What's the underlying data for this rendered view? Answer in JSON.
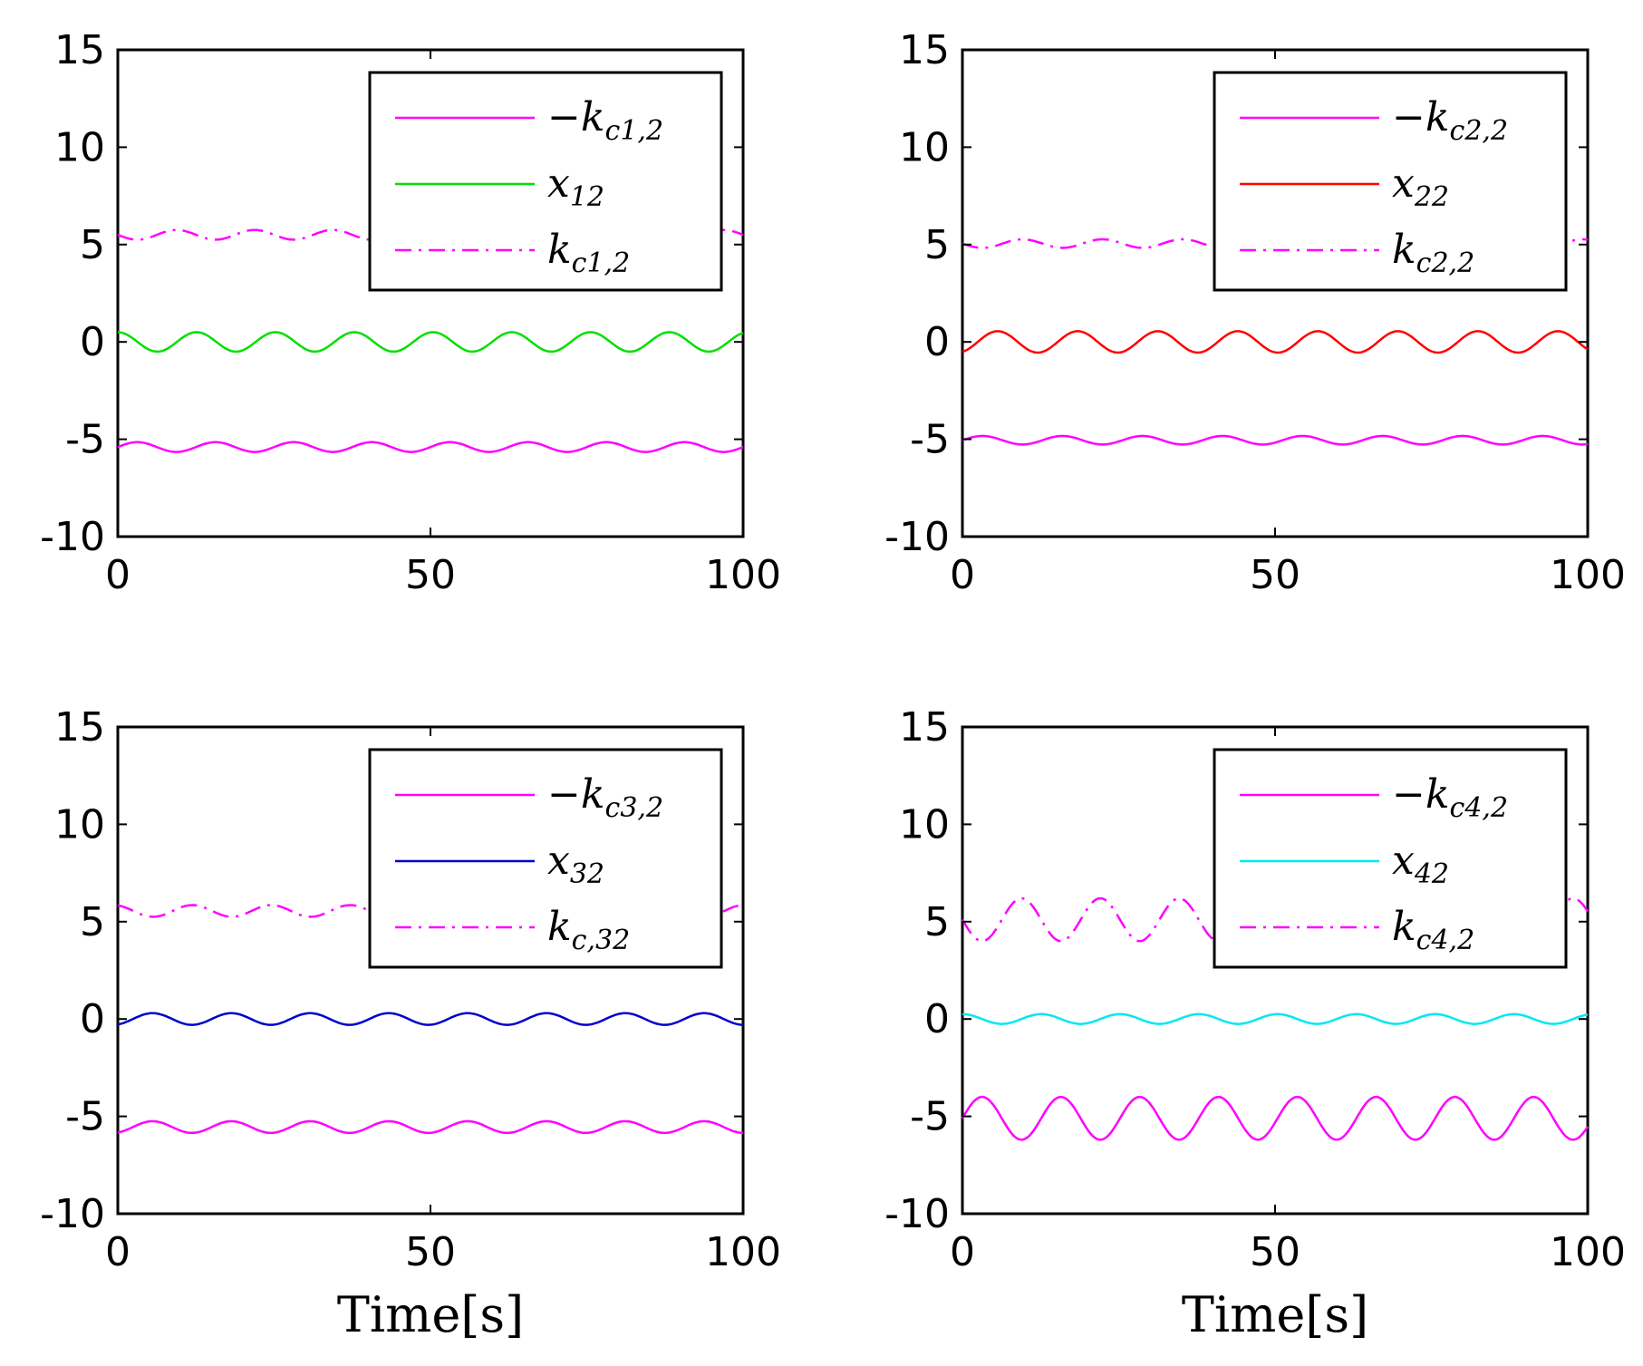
{
  "chart_data": [
    {
      "type": "line",
      "title": "",
      "xlabel": "",
      "ylabel": "",
      "xlim": [
        0,
        100
      ],
      "ylim": [
        -10,
        15
      ],
      "xticks": [
        "0",
        "50",
        "100"
      ],
      "yticks": [
        "15",
        "10",
        "5",
        "0",
        "-5",
        "-10"
      ],
      "legend_location": "top-right",
      "series": [
        {
          "name": "−k",
          "sub": "c1,2",
          "color": "#ff00ff",
          "style": "solid",
          "mean": -5.4,
          "amplitude": 0.25,
          "period": 12.5,
          "phase": 0.0
        },
        {
          "name": "x",
          "sub": "12",
          "color": "#00e000",
          "style": "solid",
          "mean": 0.0,
          "amplitude": 0.5,
          "period": 12.6,
          "phase": 1.57
        },
        {
          "name": "k",
          "sub": "c1,2",
          "color": "#ff00ff",
          "style": "dashdot",
          "mean": 5.5,
          "amplitude": 0.25,
          "period": 12.5,
          "phase": 3.14
        }
      ]
    },
    {
      "type": "line",
      "title": "",
      "xlabel": "",
      "ylabel": "",
      "xlim": [
        0,
        100
      ],
      "ylim": [
        -10,
        15
      ],
      "xticks": [
        "0",
        "50",
        "100"
      ],
      "yticks": [
        "15",
        "10",
        "5",
        "0",
        "-5",
        "-10"
      ],
      "legend_location": "top-right",
      "series": [
        {
          "name": "−k",
          "sub": "c2,2",
          "color": "#ff00ff",
          "style": "solid",
          "mean": -5.05,
          "amplitude": 0.22,
          "period": 12.8,
          "phase": 0.0
        },
        {
          "name": "x",
          "sub": "22",
          "color": "#ff0000",
          "style": "solid",
          "mean": 0.0,
          "amplitude": 0.55,
          "period": 12.8,
          "phase": -1.2
        },
        {
          "name": "k",
          "sub": "c2,2",
          "color": "#ff00ff",
          "style": "dashdot",
          "mean": 5.05,
          "amplitude": 0.22,
          "period": 12.8,
          "phase": 3.14
        }
      ]
    },
    {
      "type": "line",
      "title": "",
      "xlabel": "Time[s]",
      "ylabel": "",
      "xlim": [
        0,
        100
      ],
      "ylim": [
        -10,
        15
      ],
      "xticks": [
        "0",
        "50",
        "100"
      ],
      "yticks": [
        "15",
        "10",
        "5",
        "0",
        "-5",
        "-10"
      ],
      "legend_location": "top-right",
      "series": [
        {
          "name": "−k",
          "sub": "c3,2",
          "color": "#ff00ff",
          "style": "solid",
          "mean": -5.55,
          "amplitude": 0.3,
          "period": 12.6,
          "phase": -1.2
        },
        {
          "name": "x",
          "sub": "32",
          "color": "#0000cc",
          "style": "solid",
          "mean": 0.0,
          "amplitude": 0.3,
          "period": 12.6,
          "phase": -1.2
        },
        {
          "name": "k",
          "sub": "c,32",
          "color": "#ff00ff",
          "style": "dashdot",
          "mean": 5.55,
          "amplitude": 0.3,
          "period": 12.6,
          "phase": 1.9
        }
      ]
    },
    {
      "type": "line",
      "title": "",
      "xlabel": "Time[s]",
      "ylabel": "",
      "xlim": [
        0,
        100
      ],
      "ylim": [
        -10,
        15
      ],
      "xticks": [
        "0",
        "50",
        "100"
      ],
      "yticks": [
        "15",
        "10",
        "5",
        "0",
        "-5",
        "-10"
      ],
      "legend_location": "top-right",
      "series": [
        {
          "name": "−k",
          "sub": "c4,2",
          "color": "#ff00ff",
          "style": "solid",
          "mean": -5.1,
          "amplitude": 1.1,
          "period": 12.6,
          "phase": 0.0
        },
        {
          "name": "x",
          "sub": "42",
          "color": "#00e8f0",
          "style": "solid",
          "mean": 0.0,
          "amplitude": 0.25,
          "period": 12.6,
          "phase": 1.57
        },
        {
          "name": "k",
          "sub": "c4,2",
          "color": "#ff00ff",
          "style": "dashdot",
          "mean": 5.1,
          "amplitude": 1.1,
          "period": 12.6,
          "phase": 3.14
        }
      ]
    }
  ]
}
